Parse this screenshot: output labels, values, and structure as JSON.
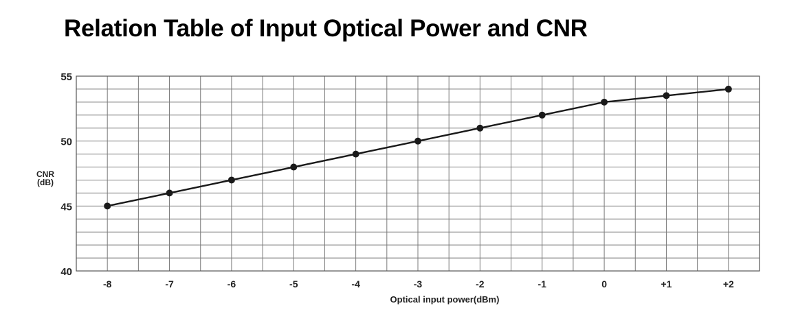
{
  "chart_data": {
    "type": "line",
    "title": "Relation Table of Input Optical Power and CNR",
    "xlabel": "Optical input power(dBm)",
    "ylabel_lines": [
      "CNR",
      "(dB)"
    ],
    "x_tick_labels": [
      "-8",
      "-7",
      "-6",
      "-5",
      "-4",
      "-3",
      "-2",
      "-1",
      "0",
      "+1",
      "+2"
    ],
    "x": [
      -8,
      -7,
      -6,
      -5,
      -4,
      -3,
      -2,
      -1,
      0,
      1,
      2
    ],
    "y_ticks": [
      40,
      45,
      50,
      55
    ],
    "y_tick_labels": [
      "40",
      "45",
      "50",
      "55"
    ],
    "ylim": [
      40,
      55
    ],
    "xlim": [
      -8.5,
      2.5
    ],
    "grid": true,
    "series": [
      {
        "values": [
          45,
          46,
          47,
          48,
          49,
          50,
          51,
          52,
          53,
          53.5,
          54
        ],
        "color": "#1a1a1a"
      }
    ]
  }
}
